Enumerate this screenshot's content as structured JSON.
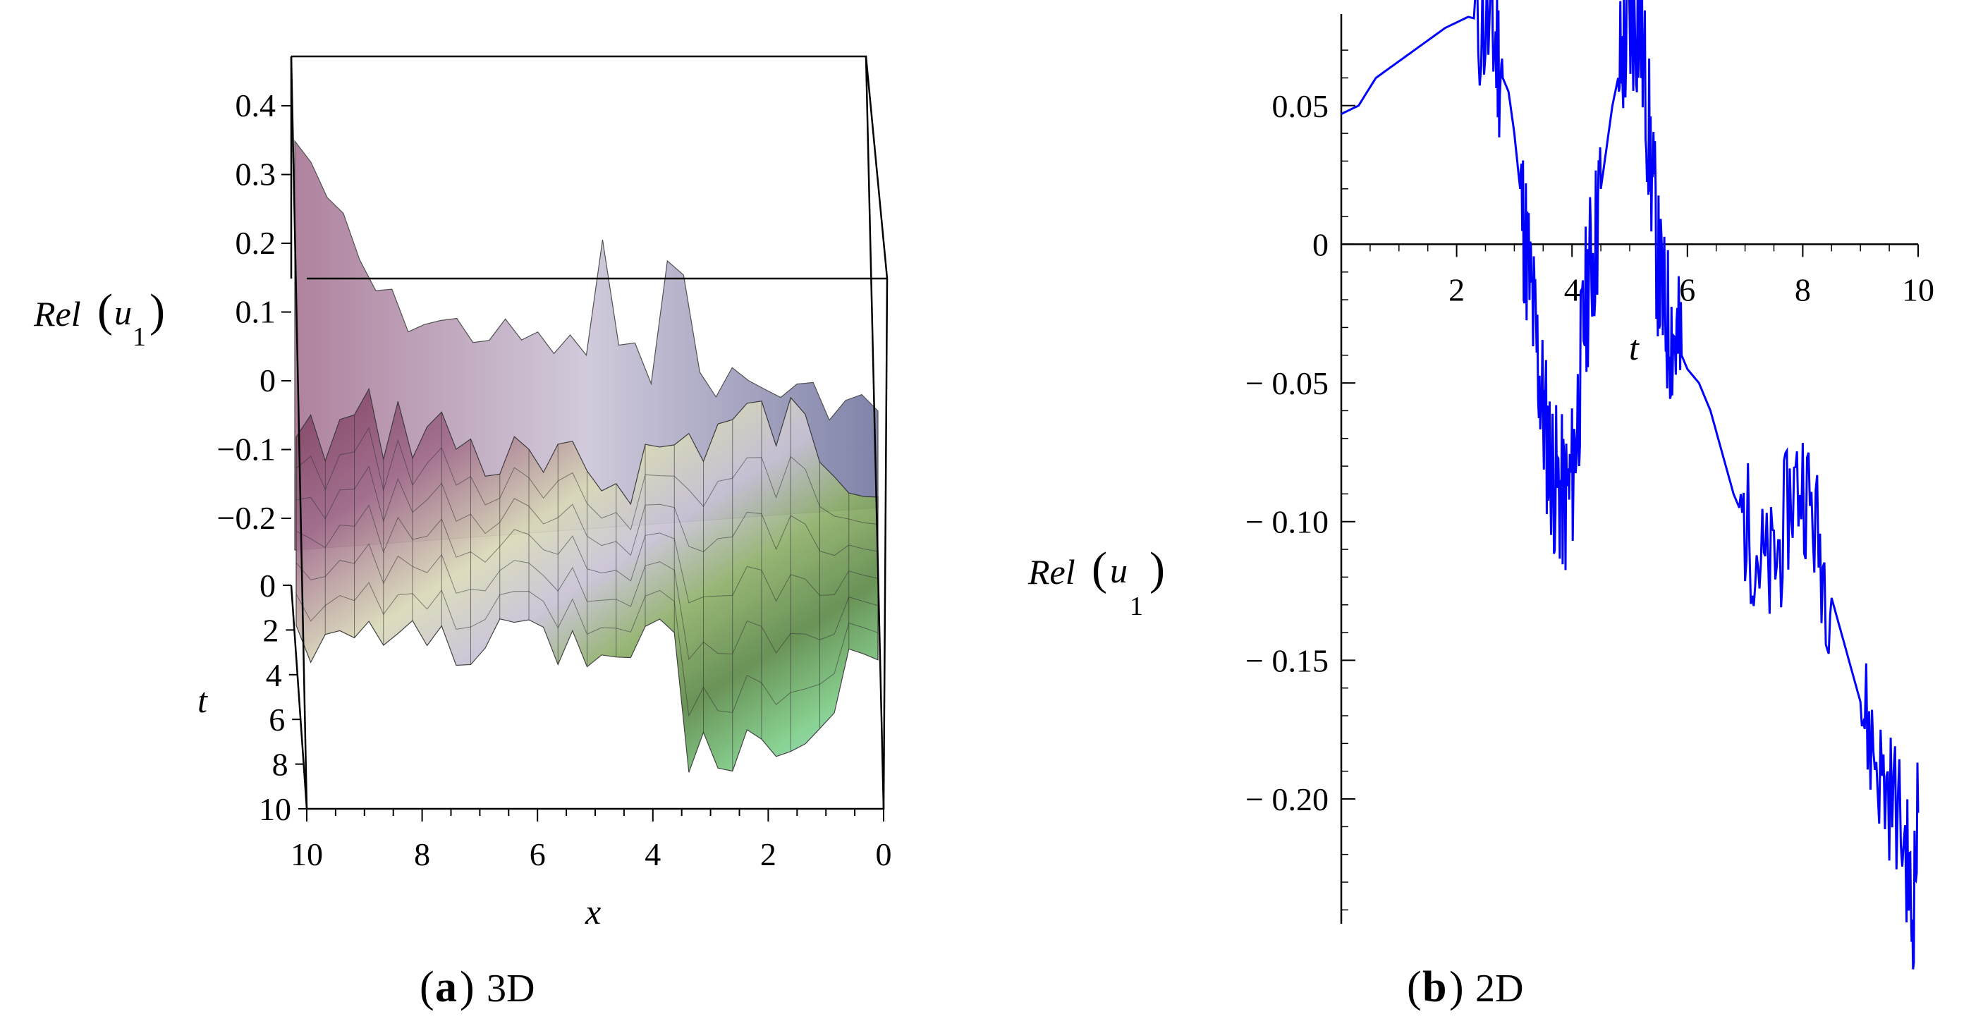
{
  "chart_data": [
    {
      "type": "surface3d",
      "panel_label": "a",
      "caption": "3D",
      "zlabel": "Rel",
      "zlabel_arg": "u",
      "zlabel_sub": "1",
      "xlabel": "x",
      "tlabel": "t",
      "z_ticks": [
        "0.4",
        "0.3",
        "0.2",
        "0.1",
        "0",
        "−0.1",
        "−0.2"
      ],
      "z_tick_values": [
        0.4,
        0.3,
        0.2,
        0.1,
        0,
        -0.1,
        -0.2
      ],
      "t_ticks": [
        "0",
        "2",
        "4",
        "6",
        "8",
        "10"
      ],
      "x_ticks": [
        "10",
        "8",
        "6",
        "4",
        "2",
        "0"
      ],
      "x_range": [
        0,
        10
      ],
      "t_range": [
        0,
        10
      ],
      "z_range": [
        -0.2,
        0.45
      ],
      "surface_colors": [
        "#7e3f5e",
        "#a26d8d",
        "#c9c2d6",
        "#d9d9b8",
        "#8fb06a",
        "#5e8a4a",
        "#7fcf8a",
        "#9ce0e6",
        "#6b6f9c"
      ]
    },
    {
      "type": "line",
      "panel_label": "b",
      "caption": "2D",
      "ylabel": "Rel",
      "ylabel_arg": "u",
      "ylabel_sub": "1",
      "xlabel": "t",
      "xlim": [
        0,
        10
      ],
      "ylim": [
        -0.245,
        0.083
      ],
      "x_ticks": [
        2,
        4,
        6,
        8,
        10
      ],
      "x_tick_labels": [
        "2",
        "4",
        "6",
        "8",
        "10"
      ],
      "y_ticks": [
        0.05,
        0,
        -0.05,
        -0.1,
        -0.15,
        -0.2
      ],
      "y_tick_labels": [
        "0.05",
        "0",
        "− 0.05",
        "− 0.10",
        "− 0.15",
        "− 0.20"
      ],
      "color": "#0000ff",
      "series": [
        {
          "name": "Rel(u1)",
          "x": [
            0.0,
            0.3,
            0.6,
            1.0,
            1.4,
            1.8,
            2.0,
            2.2,
            2.4,
            2.6,
            2.7,
            2.8,
            2.9,
            3.0,
            3.1,
            3.2,
            3.3,
            3.4,
            3.5,
            3.6,
            3.7,
            3.8,
            3.9,
            4.0,
            4.1,
            4.2,
            4.3,
            4.4,
            4.5,
            4.6,
            4.7,
            4.8,
            4.9,
            5.0,
            5.1,
            5.2,
            5.3,
            5.4,
            5.5,
            5.6,
            5.7,
            5.8,
            5.9,
            6.0,
            6.2,
            6.4,
            6.6,
            6.8,
            7.0,
            7.2,
            7.4,
            7.6,
            7.8,
            8.0,
            8.2,
            8.4,
            8.6,
            8.8,
            9.0,
            9.2,
            9.4,
            9.6,
            9.8,
            9.9,
            10.0
          ],
          "y": [
            0.047,
            0.05,
            0.06,
            0.066,
            0.072,
            0.078,
            0.08,
            0.082,
            0.081,
            0.077,
            0.07,
            0.06,
            0.055,
            0.04,
            0.02,
            0.0,
            -0.02,
            -0.04,
            -0.06,
            -0.075,
            -0.085,
            -0.09,
            -0.093,
            -0.085,
            -0.06,
            -0.03,
            -0.01,
            0.0,
            0.02,
            0.035,
            0.05,
            0.06,
            0.07,
            0.078,
            0.082,
            0.075,
            0.05,
            0.02,
            -0.01,
            -0.025,
            -0.03,
            -0.035,
            -0.04,
            -0.045,
            -0.05,
            -0.06,
            -0.075,
            -0.09,
            -0.1,
            -0.11,
            -0.12,
            -0.11,
            -0.09,
            -0.085,
            -0.1,
            -0.12,
            -0.135,
            -0.15,
            -0.165,
            -0.18,
            -0.195,
            -0.2,
            -0.22,
            -0.245,
            -0.205
          ]
        }
      ]
    }
  ]
}
